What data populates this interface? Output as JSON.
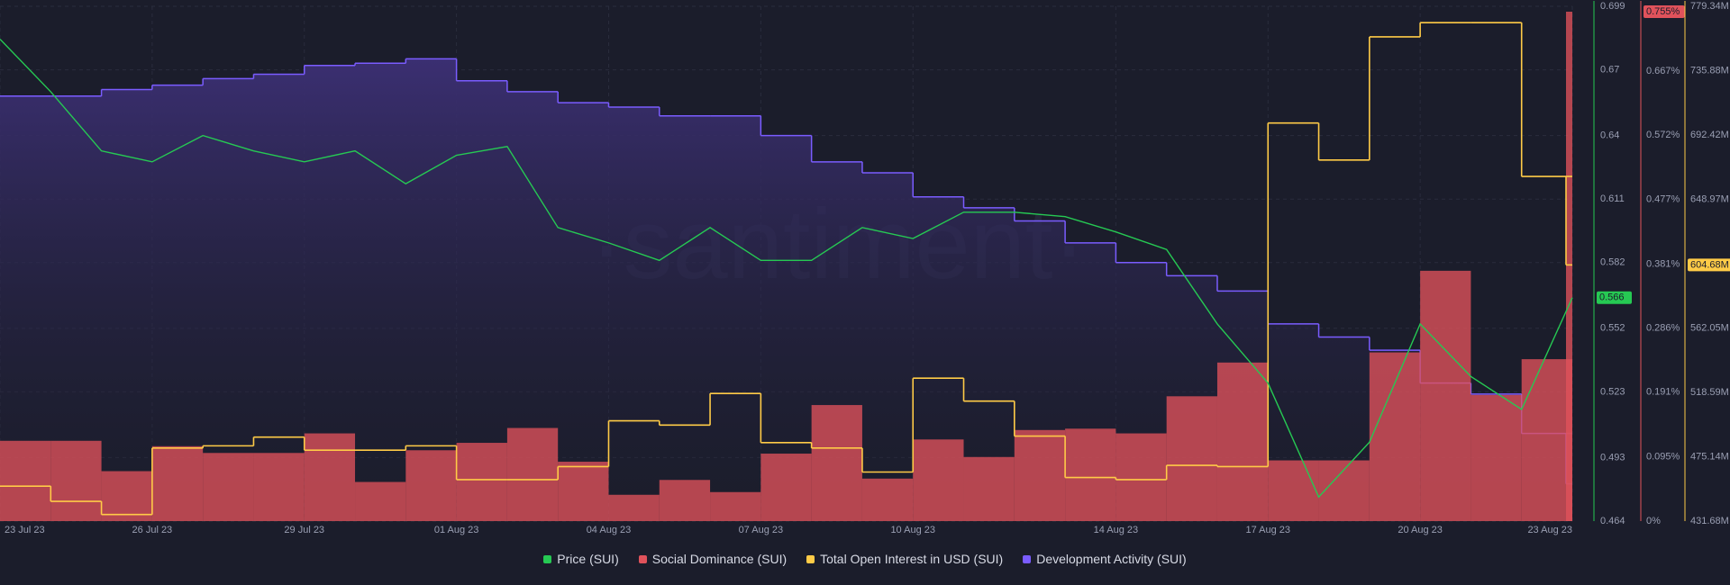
{
  "chart_data": {
    "type": "line",
    "watermark": "·santiment·",
    "xlim": [
      "2023-07-23",
      "2023-08-23"
    ],
    "x": [
      "2023-07-23",
      "2023-07-24",
      "2023-07-25",
      "2023-07-26",
      "2023-07-27",
      "2023-07-28",
      "2023-07-29",
      "2023-07-30",
      "2023-07-31",
      "2023-08-01",
      "2023-08-02",
      "2023-08-03",
      "2023-08-04",
      "2023-08-05",
      "2023-08-06",
      "2023-08-07",
      "2023-08-08",
      "2023-08-09",
      "2023-08-10",
      "2023-08-11",
      "2023-08-12",
      "2023-08-13",
      "2023-08-14",
      "2023-08-15",
      "2023-08-16",
      "2023-08-17",
      "2023-08-18",
      "2023-08-19",
      "2023-08-20",
      "2023-08-21",
      "2023-08-22",
      "2023-08-23"
    ],
    "xticks": [
      {
        "value": "2023-07-23",
        "label": "23 Jul 23"
      },
      {
        "value": "2023-07-26",
        "label": "26 Jul 23"
      },
      {
        "value": "2023-07-29",
        "label": "29 Jul 23"
      },
      {
        "value": "2023-08-01",
        "label": "01 Aug 23"
      },
      {
        "value": "2023-08-04",
        "label": "04 Aug 23"
      },
      {
        "value": "2023-08-07",
        "label": "07 Aug 23"
      },
      {
        "value": "2023-08-10",
        "label": "10 Aug 23"
      },
      {
        "value": "2023-08-14",
        "label": "14 Aug 23"
      },
      {
        "value": "2023-08-17",
        "label": "17 Aug 23"
      },
      {
        "value": "2023-08-20",
        "label": "20 Aug 23"
      },
      {
        "value": "2023-08-23",
        "label": "23 Aug 23"
      }
    ],
    "ylim": [
      0.464,
      0.699
    ],
    "yticks": [
      0.464,
      0.493,
      0.523,
      0.552,
      0.582,
      0.611,
      0.64,
      0.67,
      0.699
    ],
    "y2lim": [
      0,
      0.763
    ],
    "y2ticks": [
      {
        "value": 0,
        "label": "0%"
      },
      {
        "value": 0.095,
        "label": "0.095%"
      },
      {
        "value": 0.191,
        "label": "0.191%"
      },
      {
        "value": 0.286,
        "label": "0.286%"
      },
      {
        "value": 0.381,
        "label": "0.381%"
      },
      {
        "value": 0.477,
        "label": "0.477%"
      },
      {
        "value": 0.572,
        "label": "0.572%"
      },
      {
        "value": 0.667,
        "label": "0.667%"
      }
    ],
    "y3lim": [
      431.68,
      779.34
    ],
    "y3ticks": [
      {
        "value": 431.68,
        "label": "431.68M"
      },
      {
        "value": 475.14,
        "label": "475.14M"
      },
      {
        "value": 518.59,
        "label": "518.59M"
      },
      {
        "value": 562.05,
        "label": "562.05M"
      },
      {
        "value": 648.97,
        "label": "648.97M"
      },
      {
        "value": 692.42,
        "label": "692.42M"
      },
      {
        "value": 735.88,
        "label": "735.88M"
      },
      {
        "value": 779.34,
        "label": "779.34M"
      }
    ],
    "grid": true,
    "series": [
      {
        "name": "Price (SUI)",
        "type": "line",
        "axis": "y",
        "color": "#26c953",
        "last_label": "0.566",
        "values": [
          0.684,
          0.66,
          0.633,
          0.628,
          0.64,
          0.633,
          0.628,
          0.633,
          0.618,
          0.631,
          0.635,
          0.598,
          0.591,
          0.583,
          0.598,
          0.583,
          0.583,
          0.598,
          0.593,
          0.605,
          0.605,
          0.603,
          0.596,
          0.588,
          0.554,
          0.527,
          0.475,
          0.5,
          0.554,
          0.53,
          0.515,
          0.566
        ]
      },
      {
        "name": "Social Dominance (SUI)",
        "type": "bar",
        "axis": "y2",
        "color": "#e0525b",
        "last_label": "0.755%",
        "values": [
          0.119,
          0.119,
          0.074,
          0.111,
          0.101,
          0.101,
          0.13,
          0.058,
          0.105,
          0.116,
          0.138,
          0.088,
          0.039,
          0.061,
          0.043,
          0.1,
          0.172,
          0.063,
          0.121,
          0.095,
          0.135,
          0.137,
          0.13,
          0.185,
          0.235,
          0.09,
          0.09,
          0.25,
          0.371,
          0.187,
          0.24,
          0.755
        ]
      },
      {
        "name": "Total Open Interest in USD (SUI)",
        "type": "step",
        "axis": "y3",
        "color": "#ffcb47",
        "last_label": "604.68M",
        "values": [
          455.3,
          445,
          436.1,
          481,
          482.5,
          488.4,
          479.6,
          479.6,
          482.5,
          459.7,
          459.7,
          468.5,
          499.4,
          496.5,
          517.9,
          484.7,
          481,
          464.8,
          528.2,
          512.7,
          489.1,
          461.1,
          459.7,
          469.3,
          468.5,
          700.5,
          675.5,
          758.7,
          768.3,
          768.3,
          664.4,
          604.68
        ]
      },
      {
        "name": "Development Activity (SUI)",
        "type": "step-area",
        "axis": "y",
        "color": "#7a5cff",
        "values": [
          0.658,
          0.658,
          0.661,
          0.663,
          0.666,
          0.668,
          0.672,
          0.673,
          0.675,
          0.665,
          0.66,
          0.655,
          0.653,
          0.649,
          0.649,
          0.64,
          0.628,
          0.623,
          0.612,
          0.607,
          0.601,
          0.591,
          0.582,
          0.576,
          0.569,
          0.554,
          0.548,
          0.542,
          0.527,
          0.522,
          0.504,
          0.481
        ]
      }
    ]
  }
}
